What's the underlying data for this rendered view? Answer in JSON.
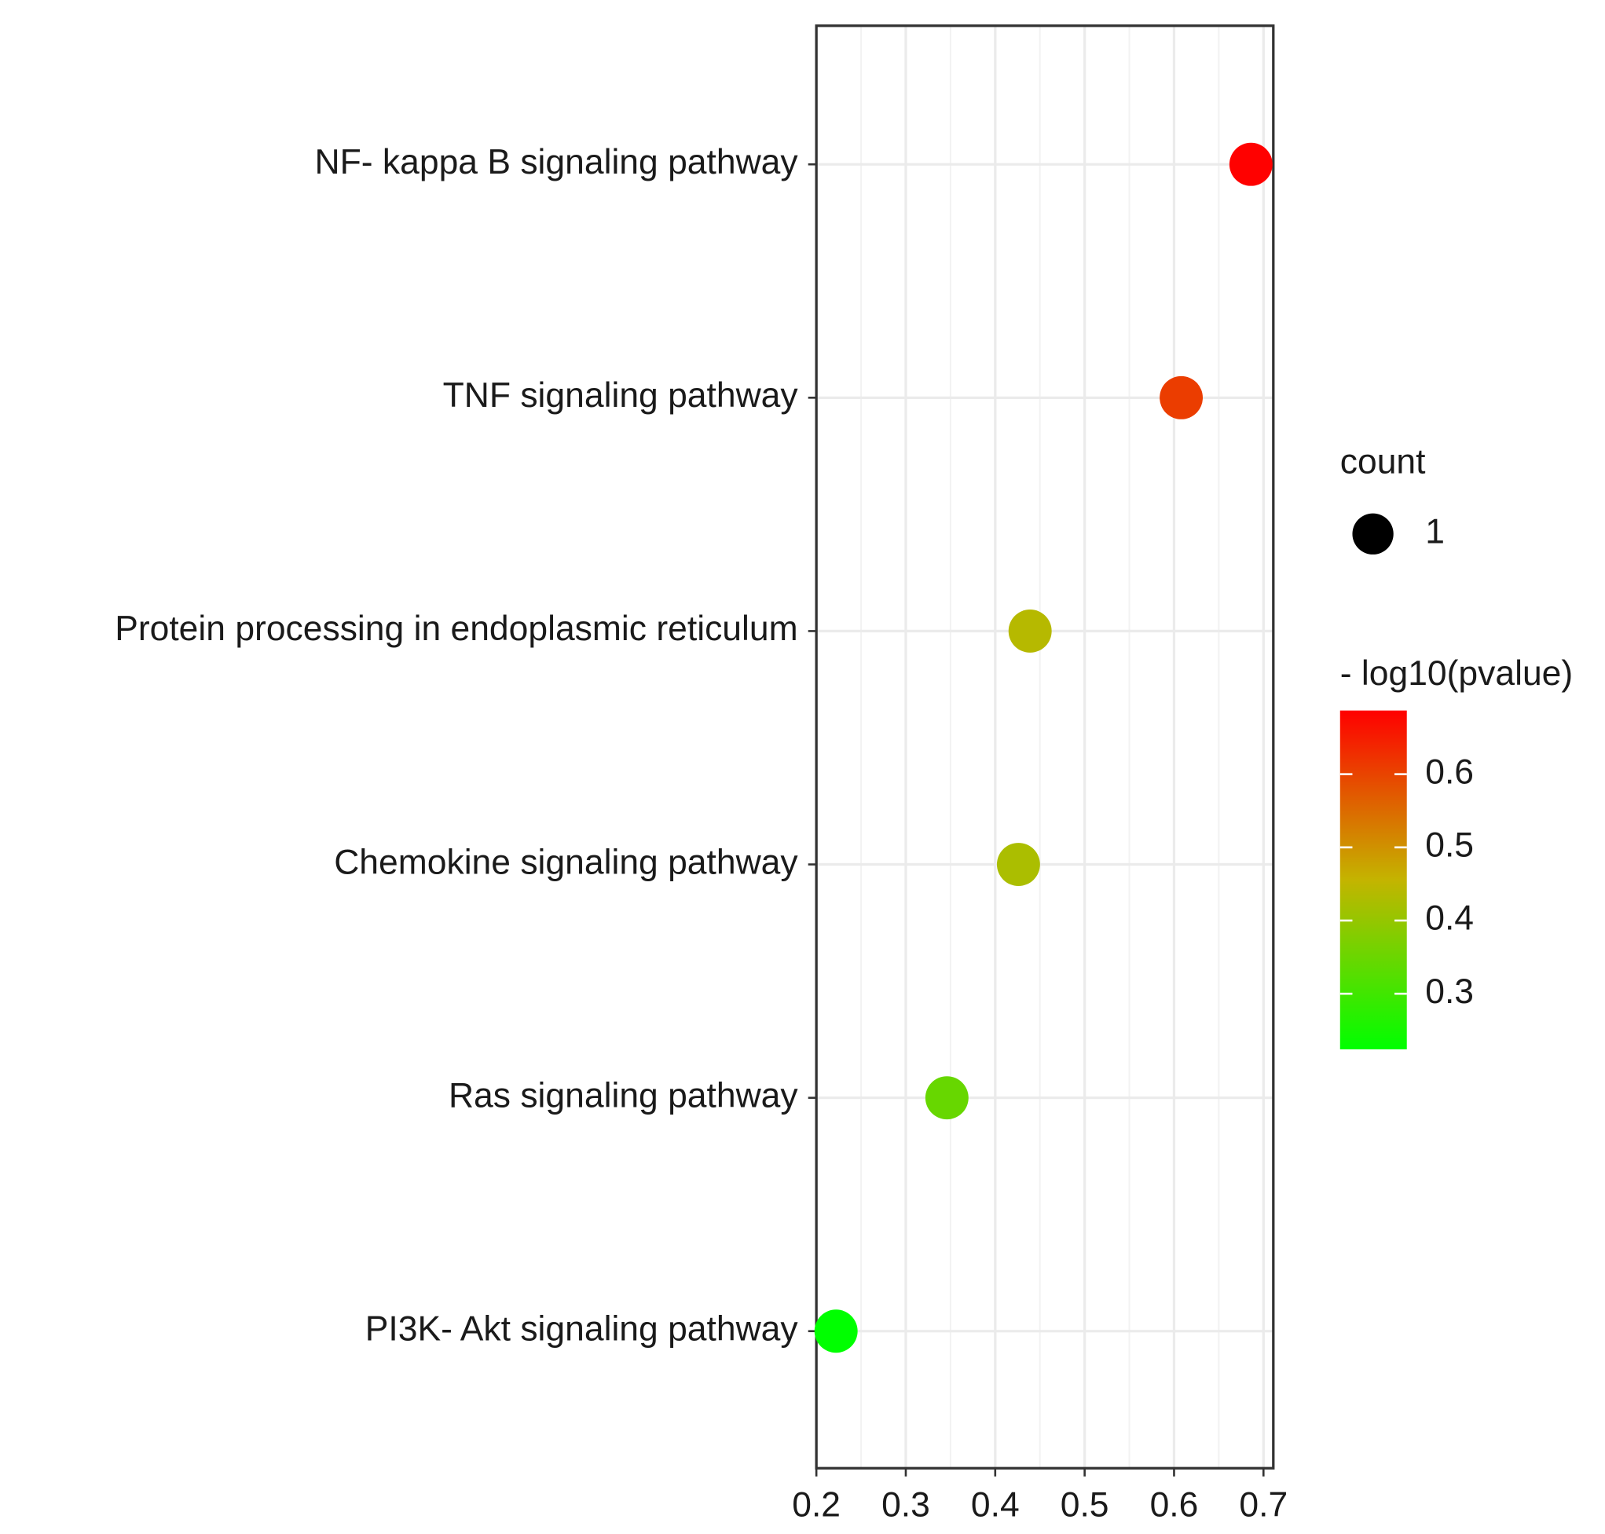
{
  "chart_data": {
    "type": "dot",
    "categories": [
      "NF- kappa B signaling pathway",
      "TNF signaling pathway",
      "Protein processing in endoplasmic reticulum",
      "Chemokine signaling pathway",
      "Ras signaling pathway",
      "PI3K- Akt signaling pathway"
    ],
    "values": [
      0.686,
      0.608,
      0.439,
      0.426,
      0.346,
      0.222
    ],
    "color_values": [
      0.686,
      0.608,
      0.439,
      0.426,
      0.346,
      0.222
    ],
    "xlim": [
      0.2,
      0.711
    ],
    "xticks": [
      0.2,
      0.3,
      0.4,
      0.5,
      0.6,
      0.7
    ],
    "grid": true,
    "size_legend": {
      "title": "count",
      "values": [
        1
      ]
    },
    "color_legend": {
      "title": "- log10(pvalue)",
      "lim": [
        0.224,
        0.687
      ],
      "ticks": [
        0.3,
        0.4,
        0.5,
        0.6
      ],
      "colors": [
        "#00ff00",
        "#c4b400",
        "#ff0000"
      ]
    }
  }
}
